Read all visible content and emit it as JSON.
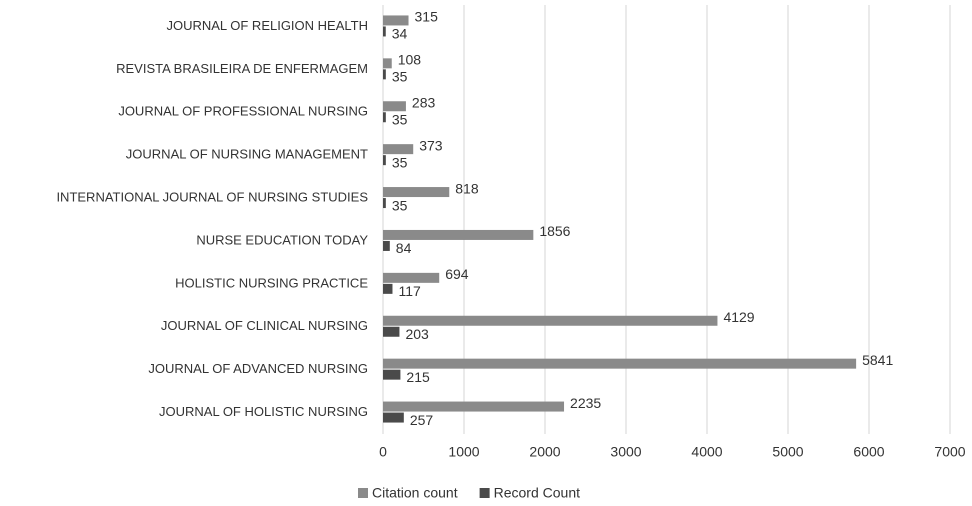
{
  "chart_data": {
    "type": "bar",
    "orientation": "horizontal",
    "categories": [
      "JOURNAL OF RELIGION HEALTH",
      "REVISTA BRASILEIRA DE ENFERMAGEM",
      "JOURNAL OF PROFESSIONAL NURSING",
      "JOURNAL OF NURSING MANAGEMENT",
      "INTERNATIONAL JOURNAL OF NURSING STUDIES",
      "NURSE EDUCATION TODAY",
      "HOLISTIC NURSING PRACTICE",
      "JOURNAL OF CLINICAL NURSING",
      "JOURNAL OF ADVANCED NURSING",
      "JOURNAL OF HOLISTIC NURSING"
    ],
    "series": [
      {
        "name": "Citation count",
        "color": "#8a8a8a",
        "values": [
          315,
          108,
          283,
          373,
          818,
          1856,
          694,
          4129,
          5841,
          2235
        ]
      },
      {
        "name": "Record Count",
        "color": "#4a4a4a",
        "values": [
          34,
          35,
          35,
          35,
          35,
          84,
          117,
          203,
          215,
          257
        ]
      }
    ],
    "xlim": [
      0,
      7000
    ],
    "xticks": [
      0,
      1000,
      2000,
      3000,
      4000,
      5000,
      6000,
      7000
    ],
    "grid": true,
    "legend": "bottom"
  }
}
